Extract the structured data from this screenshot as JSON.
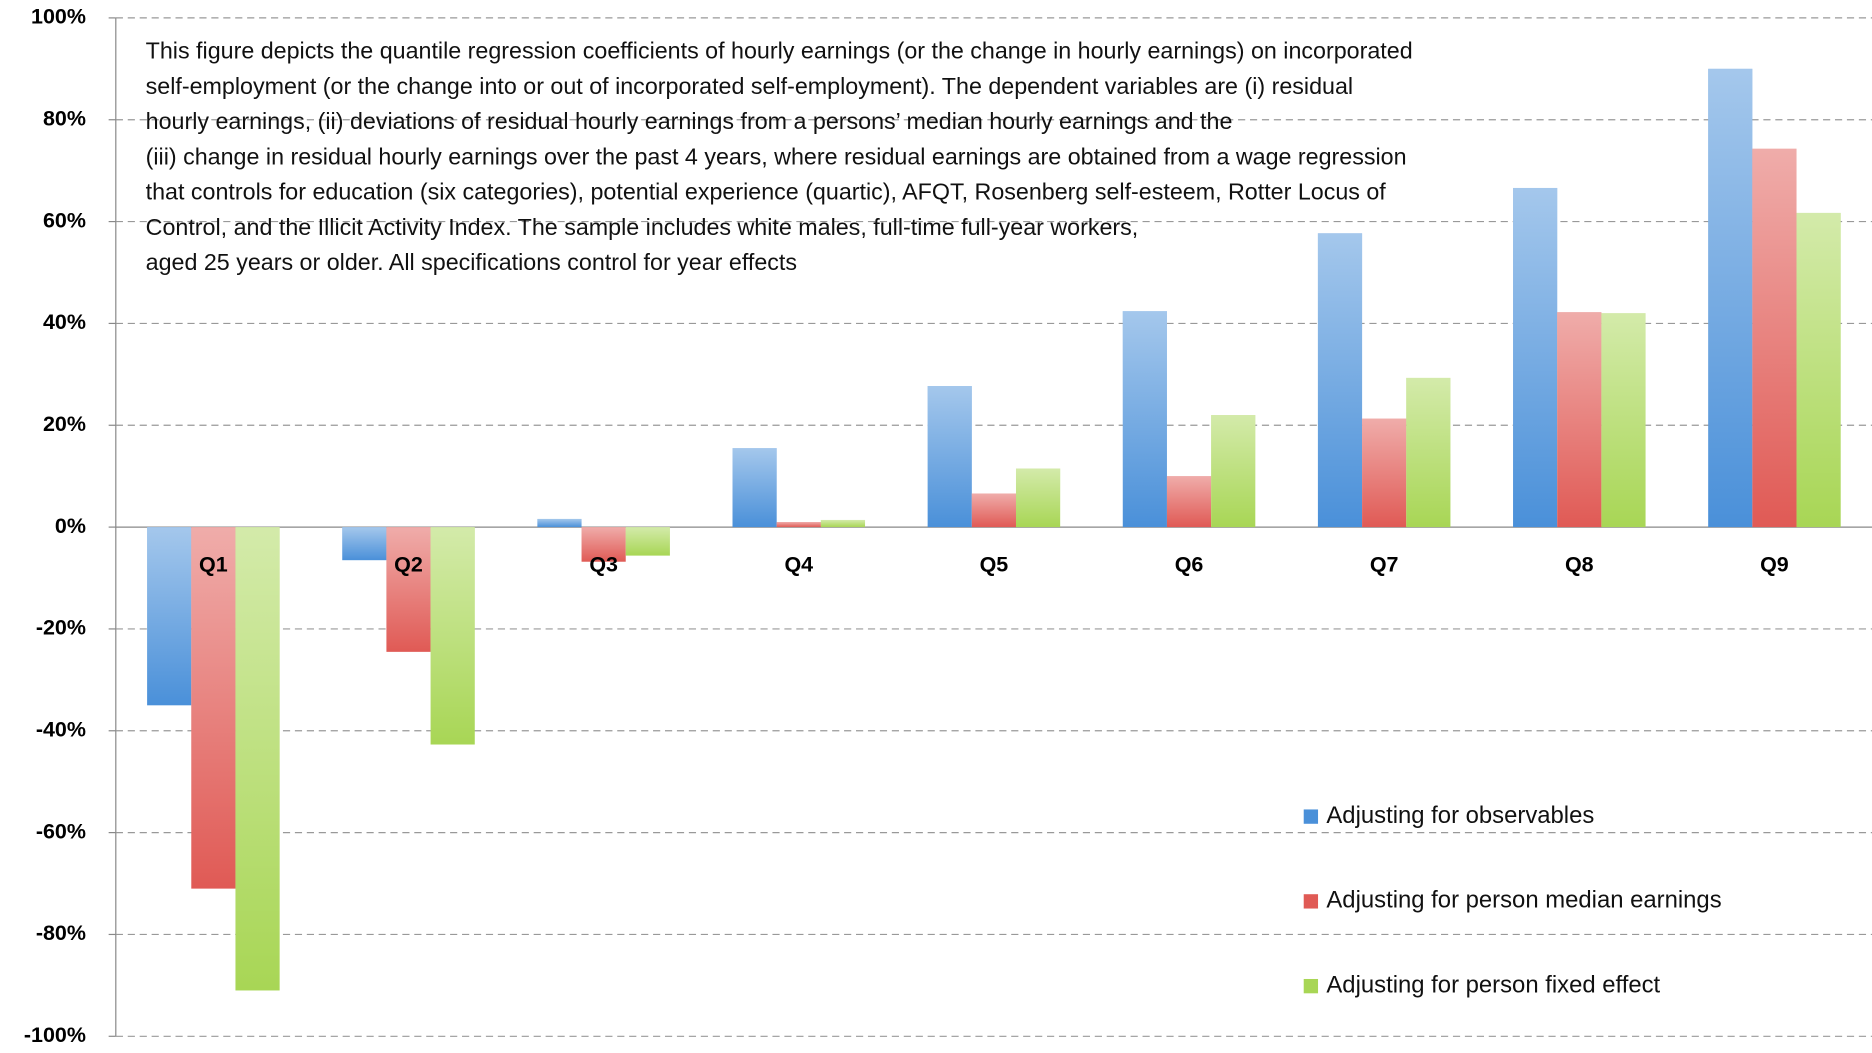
{
  "chart_data": {
    "type": "bar",
    "annotation": [
      "This figure depicts the quantile regression coefficients of hourly earnings (or the change in hourly earnings) on incorporated",
      "self-employment (or the change into or out of incorporated self-employment). The dependent variables are (i) residual",
      " hourly earnings, (ii) deviations of residual hourly earnings from a persons’ median hourly earnings and the",
      "(iii) change in residual hourly earnings over the past 4 years, where residual earnings are obtained from a wage regression",
      "that controls for education (six categories), potential experience (quartic), AFQT, Rosenberg self-esteem, Rotter Locus of",
      "Control, and the Illicit Activity Index. The sample includes white males, full-time full-year workers,",
      "aged 25 years or older. All specifications control for year effects"
    ],
    "categories": [
      "Q1",
      "Q2",
      "Q3",
      "Q4",
      "Q5",
      "Q6",
      "Q7",
      "Q8",
      "Q9"
    ],
    "series": [
      {
        "name": "Adjusting for observables",
        "color": "#4a90d9",
        "values": [
          -35,
          -6.5,
          1.6,
          15.5,
          27.7,
          42.4,
          57.7,
          66.6,
          90
        ]
      },
      {
        "name": "Adjusting for person median earnings",
        "color": "#e05a55",
        "values": [
          -71,
          -24.5,
          -6.8,
          1,
          6.6,
          10,
          21.3,
          42.2,
          74.3
        ]
      },
      {
        "name": "Adjusting for person fixed effect",
        "color": "#a8d655",
        "values": [
          -91,
          -42.7,
          -5.6,
          1.4,
          11.5,
          22,
          29.3,
          42,
          61.7
        ]
      }
    ],
    "ylim": [
      -100,
      100
    ],
    "yticks": [
      {
        "value": -100,
        "label": "-100%"
      },
      {
        "value": -80,
        "label": "-80%"
      },
      {
        "value": -60,
        "label": "-60%"
      },
      {
        "value": -40,
        "label": "-40%"
      },
      {
        "value": -20,
        "label": "-20%"
      },
      {
        "value": 0,
        "label": "0%"
      },
      {
        "value": 20,
        "label": "20%"
      },
      {
        "value": 40,
        "label": "40%"
      },
      {
        "value": 60,
        "label": "60%"
      },
      {
        "value": 80,
        "label": "80%"
      },
      {
        "value": 100,
        "label": "100%"
      }
    ],
    "grid": true,
    "legend": "lower right"
  }
}
